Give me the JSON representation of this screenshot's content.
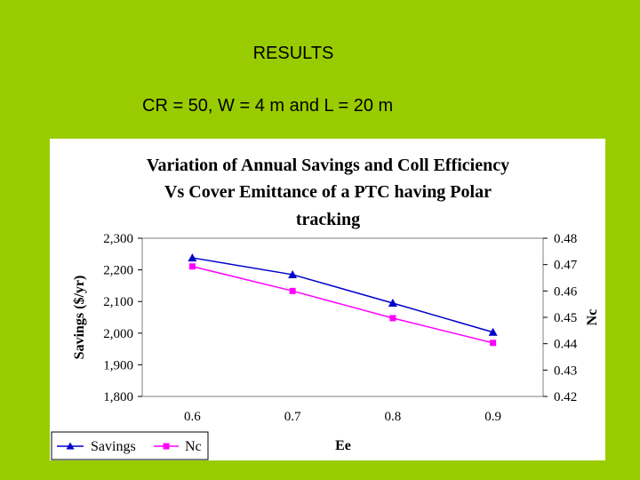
{
  "slide": {
    "title": "RESULTS",
    "subtitle": "CR = 50, W = 4 m and L = 20 m"
  },
  "colors": {
    "background": "#99cc00",
    "savings": "#0000cc",
    "nc": "#ff00ff",
    "plot_border": "#808080"
  },
  "chart_data": {
    "type": "line",
    "title_lines": [
      "Variation of Annual Savings and Coll Efficiency",
      "Vs Cover Emittance of a PTC having Polar",
      "tracking"
    ],
    "xlabel": "Ee",
    "ylabel": "Savings ($/yr)",
    "y2label": "Nc",
    "categories": [
      "0.6",
      "0.7",
      "0.8",
      "0.9"
    ],
    "ylim": [
      1800,
      2300
    ],
    "yticks": [
      "2,300",
      "2,200",
      "2,100",
      "2,000",
      "1,900",
      "1,800"
    ],
    "y2lim": [
      0.42,
      0.48
    ],
    "y2ticks": [
      "0.48",
      "0.47",
      "0.46",
      "0.45",
      "0.44",
      "0.43",
      "0.42"
    ],
    "legend_position": "bottom-left",
    "grid": false,
    "series": [
      {
        "name": "Savings",
        "axis": "left",
        "marker": "triangle",
        "values": [
          2238,
          2185,
          2095,
          2003
        ]
      },
      {
        "name": "Nc",
        "axis": "right",
        "marker": "square",
        "values": [
          0.4693,
          0.46,
          0.4497,
          0.4403
        ]
      }
    ]
  }
}
